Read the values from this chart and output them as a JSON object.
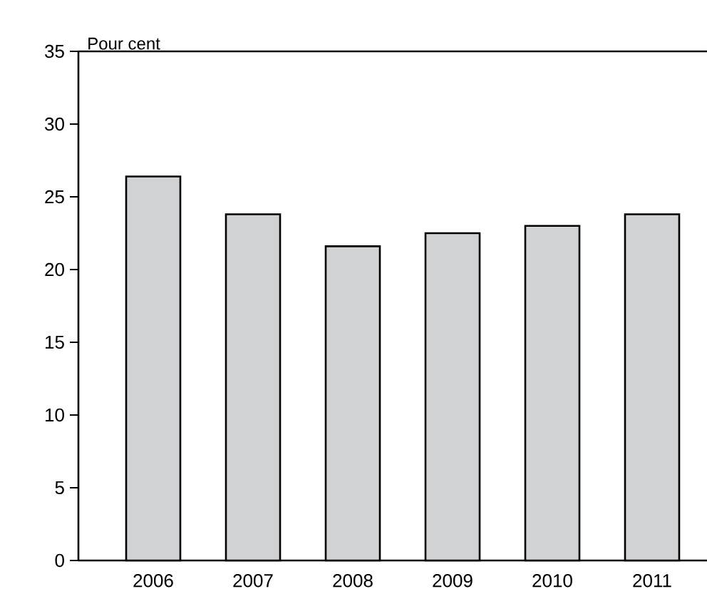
{
  "chart_data": {
    "type": "bar",
    "ylabel": "Pour cent",
    "categories": [
      "2006",
      "2007",
      "2008",
      "2009",
      "2010",
      "2011"
    ],
    "values": [
      26.4,
      23.8,
      21.6,
      22.5,
      23.0,
      23.8
    ],
    "color": "#d1d2d4",
    "ylim": [
      0,
      35
    ],
    "yticks": [
      0,
      5,
      10,
      15,
      20,
      25,
      30,
      35
    ],
    "grid": false
  }
}
